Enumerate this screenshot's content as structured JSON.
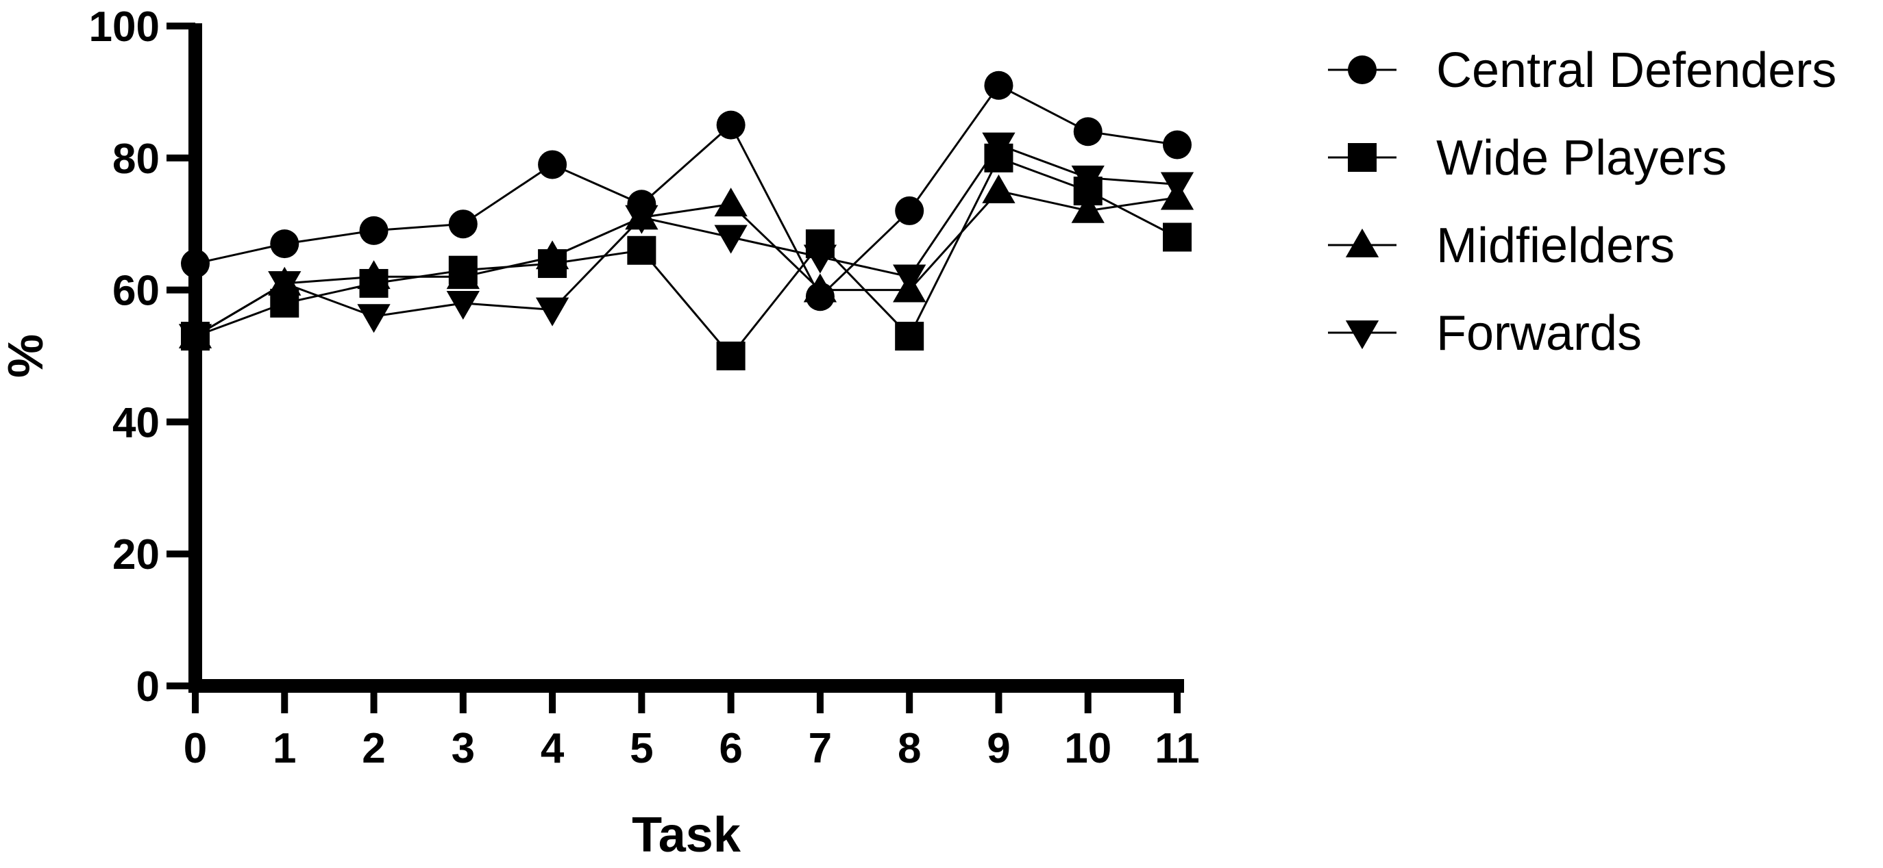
{
  "chart_data": {
    "type": "line",
    "title": "",
    "xlabel": "Task",
    "ylabel": "%",
    "xlim": [
      0,
      11
    ],
    "ylim": [
      0,
      100
    ],
    "x": [
      0,
      1,
      2,
      3,
      4,
      5,
      6,
      7,
      8,
      9,
      10,
      11
    ],
    "x_ticks": [
      "0",
      "1",
      "2",
      "3",
      "4",
      "5",
      "6",
      "7",
      "8",
      "9",
      "10",
      "11"
    ],
    "y_ticks": [
      "0",
      "20",
      "40",
      "60",
      "80",
      "100"
    ],
    "grid": false,
    "legend_position": "right",
    "colors": {
      "line": "#000000",
      "marker": "#000000",
      "background": "#ffffff"
    },
    "series": [
      {
        "name": "Central Defenders",
        "marker": "circle",
        "values": [
          64,
          67,
          69,
          70,
          79,
          73,
          85,
          59,
          72,
          91,
          84,
          82
        ]
      },
      {
        "name": "Wide Players",
        "marker": "square",
        "values": [
          53,
          58,
          61,
          63,
          64,
          66,
          50,
          67,
          53,
          80,
          75,
          68
        ]
      },
      {
        "name": "Midfielders",
        "marker": "triangle-up",
        "values": [
          53,
          61,
          62,
          62,
          65,
          71,
          73,
          60,
          60,
          75,
          72,
          74
        ]
      },
      {
        "name": "Forwards",
        "marker": "triangle-down",
        "values": [
          53,
          61,
          56,
          58,
          57,
          71,
          68,
          65,
          62,
          82,
          77,
          76
        ]
      }
    ]
  }
}
